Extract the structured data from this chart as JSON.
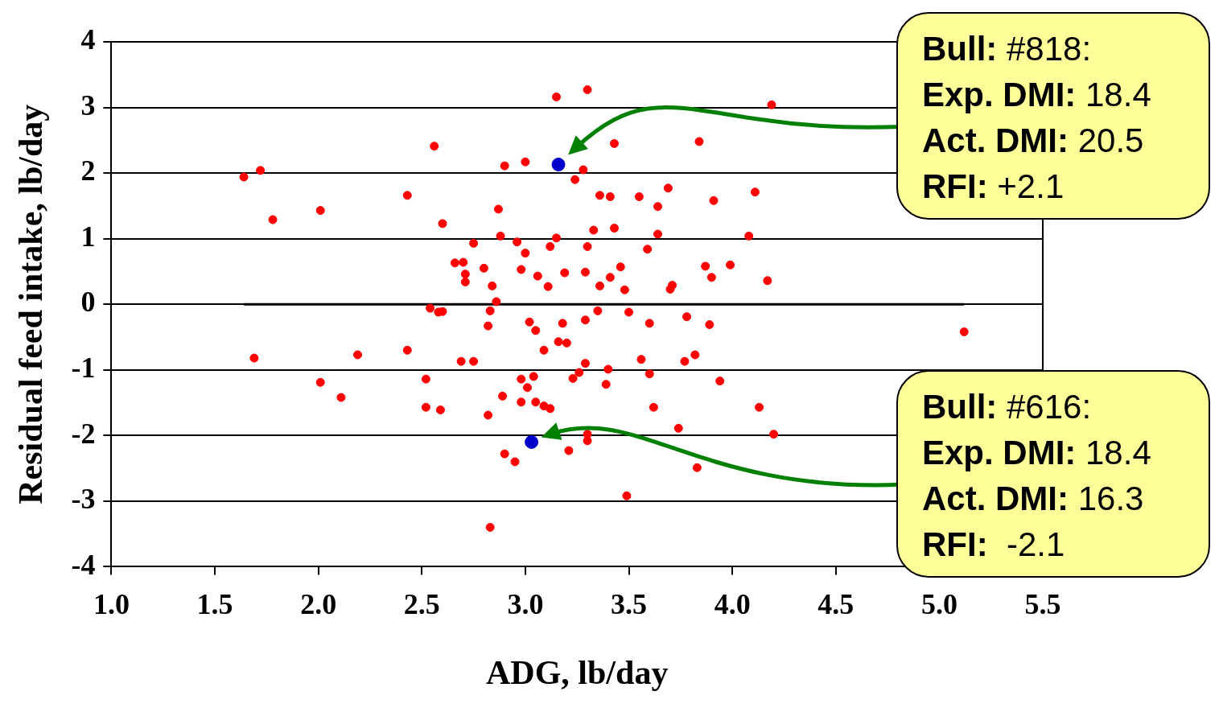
{
  "chart_data": {
    "type": "scatter",
    "xlabel": "ADG, lb/day",
    "ylabel": "Residual feed intake, lb/day",
    "xlim": [
      1,
      5.5
    ],
    "ylim": [
      -4,
      4
    ],
    "xticks": [
      {
        "value": 1,
        "label": "1.0"
      },
      {
        "value": 1.5,
        "label": "1.5"
      },
      {
        "value": 2,
        "label": "2.0"
      },
      {
        "value": 2.5,
        "label": "2.5"
      },
      {
        "value": 3,
        "label": "3.0"
      },
      {
        "value": 3.5,
        "label": "3.5"
      },
      {
        "value": 4,
        "label": "4.0"
      },
      {
        "value": 4.5,
        "label": "4.5"
      },
      {
        "value": 5,
        "label": "5.0"
      },
      {
        "value": 5.5,
        "label": "5.5"
      }
    ],
    "yticks": [
      -4,
      -3,
      -2,
      -1,
      0,
      1,
      2,
      3,
      4
    ],
    "grid": "y",
    "marker": "circle",
    "series": [
      {
        "color": "#ff0000",
        "x": [
          1.64,
          1.72,
          1.78,
          1.69,
          2.01,
          2.01,
          2.11,
          2.19,
          2.43,
          2.43,
          2.56,
          2.6,
          2.52,
          2.52,
          2.59,
          2.54,
          2.58,
          2.6,
          2.66,
          2.7,
          2.71,
          2.71,
          2.75,
          2.69,
          2.75,
          2.8,
          2.84,
          2.86,
          2.83,
          2.82,
          2.82,
          2.83,
          2.87,
          2.88,
          2.89,
          2.9,
          2.95,
          2.9,
          2.96,
          3.0,
          3.0,
          2.98,
          2.98,
          2.98,
          3.01,
          3.02,
          3.04,
          3.05,
          3.06,
          3.05,
          3.09,
          3.09,
          3.12,
          3.11,
          3.12,
          3.15,
          3.15,
          3.16,
          3.18,
          3.19,
          3.2,
          3.21,
          3.23,
          3.24,
          3.26,
          3.28,
          3.29,
          3.29,
          3.29,
          3.3,
          3.3,
          3.3,
          3.3,
          3.33,
          3.35,
          3.36,
          3.36,
          3.39,
          3.4,
          3.41,
          3.41,
          3.43,
          3.43,
          3.46,
          3.48,
          3.5,
          3.49,
          3.55,
          3.56,
          3.59,
          3.6,
          3.6,
          3.62,
          3.64,
          3.64,
          3.69,
          3.7,
          3.71,
          3.74,
          3.78,
          3.77,
          3.82,
          3.83,
          3.84,
          3.87,
          3.89,
          3.9,
          3.91,
          3.94,
          3.99,
          4.08,
          4.11,
          4.13,
          4.17,
          4.19,
          4.2,
          5.12
        ],
        "values": [
          1.94,
          2.04,
          1.29,
          -0.82,
          1.43,
          -1.19,
          -1.42,
          -0.77,
          1.66,
          -0.7,
          2.41,
          1.23,
          -1.14,
          -1.57,
          -1.61,
          -0.06,
          -0.12,
          -0.11,
          0.63,
          0.64,
          0.46,
          0.34,
          0.93,
          -0.87,
          -0.87,
          0.55,
          0.28,
          0.04,
          -0.1,
          -0.33,
          -1.69,
          -3.4,
          1.45,
          1.04,
          -1.4,
          -2.28,
          -2.4,
          2.11,
          0.95,
          2.17,
          0.78,
          0.53,
          -1.14,
          -1.49,
          -1.27,
          -0.27,
          -1.1,
          -0.4,
          0.43,
          -1.49,
          -0.7,
          -1.55,
          -1.59,
          0.27,
          0.88,
          3.16,
          1.01,
          -0.57,
          -0.29,
          0.48,
          -0.59,
          -2.23,
          -1.13,
          1.9,
          -1.04,
          2.05,
          0.49,
          -0.24,
          -0.9,
          0.88,
          3.27,
          -1.98,
          -2.08,
          1.13,
          -0.1,
          1.66,
          0.28,
          -1.22,
          -0.99,
          0.41,
          1.64,
          1.16,
          2.45,
          0.57,
          0.22,
          -0.12,
          -2.92,
          1.64,
          -0.84,
          0.84,
          -0.29,
          -1.06,
          -1.57,
          1.07,
          1.49,
          1.77,
          0.23,
          0.29,
          -1.89,
          -0.19,
          -0.87,
          -0.77,
          -2.49,
          2.48,
          0.58,
          -0.31,
          0.41,
          1.58,
          -1.17,
          0.6,
          1.04,
          1.71,
          -1.57,
          0.36,
          3.04,
          -1.98,
          -0.42
        ]
      },
      {
        "color": "#0000cc",
        "x": [
          3.16,
          3.03
        ],
        "values": [
          2.13,
          -2.1
        ]
      },
      {
        "type": "line",
        "color": "#000000",
        "marker": "none",
        "x": [
          1.64,
          5.12
        ],
        "values": [
          0,
          0
        ]
      }
    ],
    "annotations": [
      "Bull: #818:\nExp. DMI: 18.4\nAct. DMI: 20.5\nRFI: +2.1",
      "Bull: #616:\nExp. DMI: 18.4\nAct. DMI: 16.3\nRFI:  -2.1"
    ]
  }
}
